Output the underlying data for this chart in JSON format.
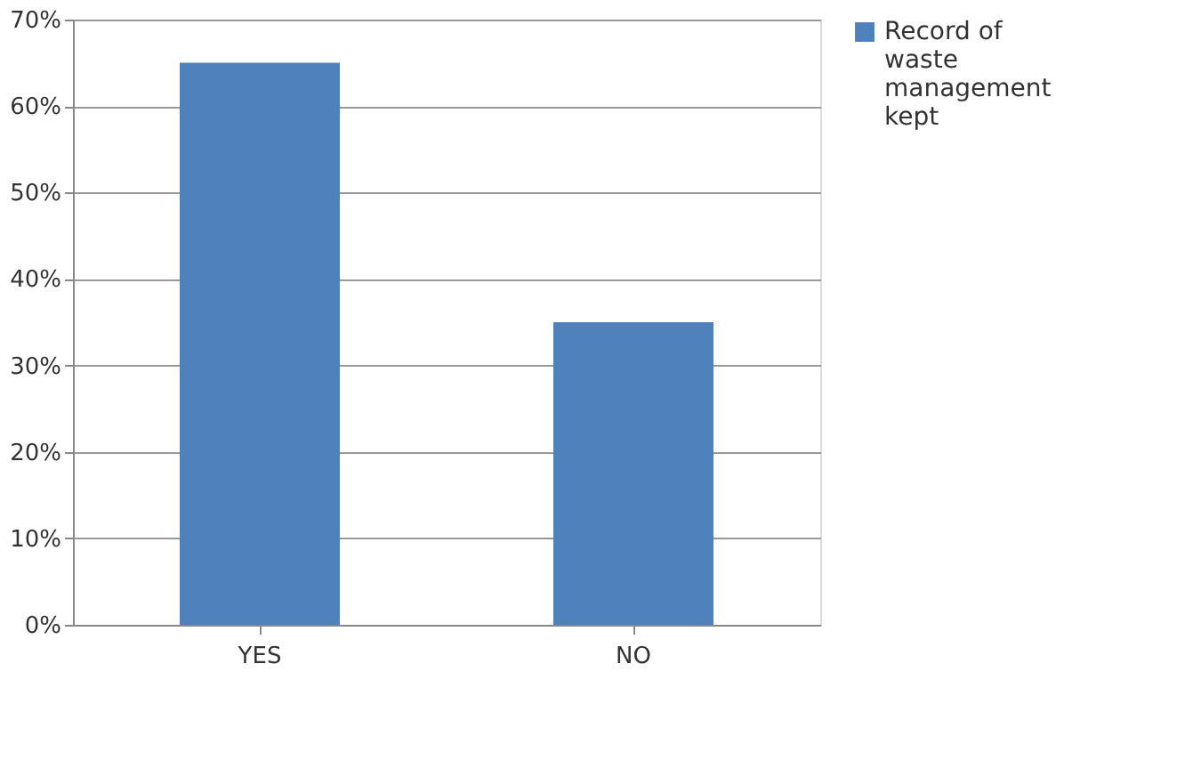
{
  "chart_data": {
    "type": "bar",
    "categories": [
      "YES",
      "NO"
    ],
    "series": [
      {
        "name": "Record of waste management kept",
        "color": "#4f81bd",
        "values": [
          65,
          35
        ]
      }
    ],
    "ylim": [
      0,
      70
    ],
    "yticks": [
      {
        "value": 0,
        "label": "0%"
      },
      {
        "value": 10,
        "label": "10%"
      },
      {
        "value": 20,
        "label": "20%"
      },
      {
        "value": 30,
        "label": "30%"
      },
      {
        "value": 40,
        "label": "40%"
      },
      {
        "value": 50,
        "label": "50%"
      },
      {
        "value": 60,
        "label": "60%"
      },
      {
        "value": 70,
        "label": "70%"
      }
    ],
    "grid": "y",
    "legend": "right"
  }
}
